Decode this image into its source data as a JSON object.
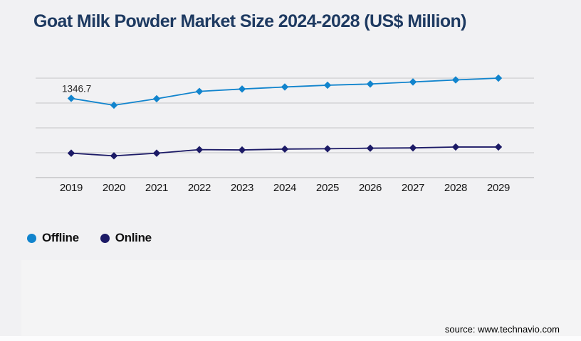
{
  "title": "Goat Milk Powder Market Size 2024-2028 (US$ Million)",
  "source": "source: www.technavio.com",
  "colors": {
    "background": "#f1f1f3",
    "title": "#1e3a61",
    "grid": "#d4d4d6",
    "axis_line": "#c6c6c8",
    "offline": "#1184cd",
    "online": "#1c1a66",
    "label_text": "#2b2b2b"
  },
  "chart_data": {
    "type": "line",
    "title": "Goat Milk Powder Market Size 2024-2028 (US$ Million)",
    "xlabel": "",
    "ylabel": "US$ Million",
    "x": [
      "2019",
      "2020",
      "2021",
      "2022",
      "2023",
      "2024",
      "2025",
      "2026",
      "2027",
      "2028",
      "2029"
    ],
    "series": [
      {
        "name": "Offline",
        "color": "#1184cd",
        "values": [
          1346.7,
          1230,
          1340,
          1465,
          1505,
          1540,
          1570,
          1590,
          1625,
          1660,
          1690
        ]
      },
      {
        "name": "Online",
        "color": "#1c1a66",
        "values": [
          415,
          370,
          415,
          475,
          470,
          485,
          490,
          500,
          505,
          520,
          520
        ]
      }
    ],
    "ylim": [
      0,
      1690
    ],
    "y_axis_labels_visible": false,
    "grid": true,
    "gridline_count": 5,
    "marker": "diamond",
    "legend_position": "bottom-left",
    "data_label": {
      "series": "Offline",
      "x": "2019",
      "text": "1346.7"
    }
  }
}
